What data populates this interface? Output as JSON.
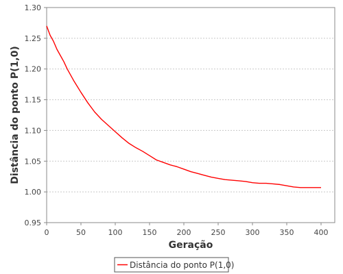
{
  "chart_data": {
    "type": "line",
    "title": "",
    "xlabel": "Geração",
    "ylabel": "Distância do ponto P(1,0)",
    "xlim": [
      0,
      420
    ],
    "ylim": [
      0.95,
      1.3
    ],
    "x_ticks": [
      0,
      50,
      100,
      150,
      200,
      250,
      300,
      350,
      400
    ],
    "y_ticks": [
      0.95,
      1.0,
      1.05,
      1.1,
      1.15,
      1.2,
      1.25,
      1.3
    ],
    "y_tick_labels": [
      "0.95",
      "1.00",
      "1.05",
      "1.10",
      "1.15",
      "1.20",
      "1.25",
      "1.30"
    ],
    "grid": true,
    "legend_position": "bottom-center",
    "series": [
      {
        "name": "Distância do ponto P(1,0)",
        "color": "#ff0000",
        "x": [
          0,
          5,
          10,
          15,
          20,
          25,
          30,
          40,
          50,
          60,
          70,
          80,
          90,
          100,
          110,
          120,
          130,
          140,
          150,
          160,
          170,
          180,
          190,
          200,
          210,
          220,
          230,
          240,
          250,
          260,
          270,
          280,
          290,
          300,
          310,
          320,
          330,
          340,
          350,
          360,
          370,
          380,
          390,
          400
        ],
        "y": [
          1.27,
          1.255,
          1.245,
          1.232,
          1.222,
          1.212,
          1.2,
          1.18,
          1.162,
          1.145,
          1.13,
          1.118,
          1.108,
          1.098,
          1.088,
          1.079,
          1.072,
          1.066,
          1.059,
          1.052,
          1.048,
          1.044,
          1.041,
          1.037,
          1.033,
          1.03,
          1.027,
          1.024,
          1.022,
          1.02,
          1.019,
          1.018,
          1.017,
          1.015,
          1.014,
          1.014,
          1.013,
          1.012,
          1.01,
          1.008,
          1.007,
          1.007,
          1.007,
          1.007
        ]
      }
    ]
  }
}
